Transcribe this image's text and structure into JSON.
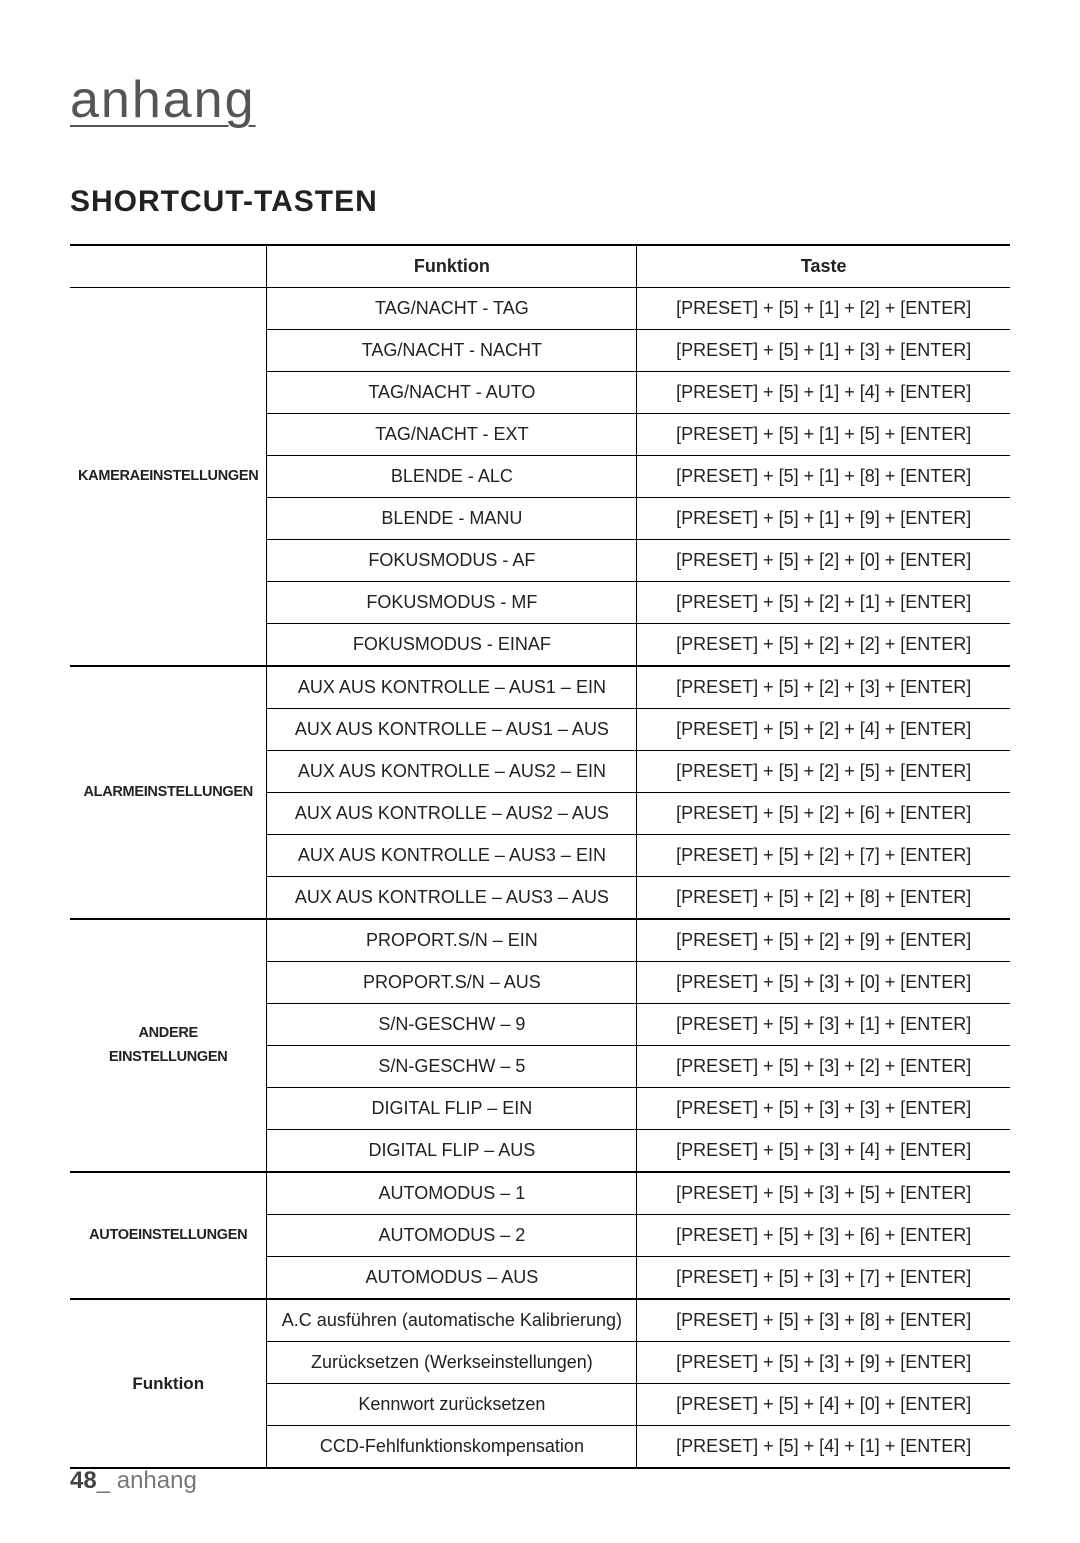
{
  "header": "anhang",
  "section_title": "SHORTCUT-TASTEN",
  "columns": {
    "cat": "",
    "func": "Funktion",
    "key": "Taste"
  },
  "groups": [
    {
      "category": "KAMERAEINSTELLUNGEN",
      "rows": [
        {
          "func": "TAG/NACHT - TAG",
          "key": "[PRESET] + [5] + [1] + [2] + [ENTER]"
        },
        {
          "func": "TAG/NACHT - NACHT",
          "key": "[PRESET] + [5] + [1] + [3] + [ENTER]"
        },
        {
          "func": "TAG/NACHT - AUTO",
          "key": "[PRESET] + [5] + [1] + [4] + [ENTER]"
        },
        {
          "func": "TAG/NACHT - EXT",
          "key": "[PRESET] + [5] + [1] + [5] + [ENTER]"
        },
        {
          "func": "BLENDE - ALC",
          "key": "[PRESET] + [5] + [1] + [8] + [ENTER]"
        },
        {
          "func": "BLENDE - MANU",
          "key": "[PRESET] + [5] + [1] + [9] + [ENTER]"
        },
        {
          "func": "FOKUSMODUS - AF",
          "key": "[PRESET] + [5] + [2] + [0] + [ENTER]"
        },
        {
          "func": "FOKUSMODUS - MF",
          "key": "[PRESET] + [5] + [2] + [1] + [ENTER]"
        },
        {
          "func": "FOKUSMODUS - EINAF",
          "key": "[PRESET] + [5] + [2] + [2] + [ENTER]"
        }
      ]
    },
    {
      "category": "ALARMEINSTELLUNGEN",
      "rows": [
        {
          "func": "AUX AUS KONTROLLE – AUS1 – EIN",
          "key": "[PRESET] + [5] + [2] + [3] + [ENTER]"
        },
        {
          "func": "AUX AUS KONTROLLE – AUS1 – AUS",
          "key": "[PRESET] + [5] + [2] + [4] + [ENTER]"
        },
        {
          "func": "AUX AUS KONTROLLE – AUS2 – EIN",
          "key": "[PRESET] + [5] + [2] + [5] + [ENTER]"
        },
        {
          "func": "AUX AUS KONTROLLE – AUS2 – AUS",
          "key": "[PRESET] + [5] + [2] + [6] + [ENTER]"
        },
        {
          "func": "AUX AUS KONTROLLE – AUS3 – EIN",
          "key": "[PRESET] + [5] + [2] + [7] + [ENTER]"
        },
        {
          "func": "AUX AUS KONTROLLE – AUS3 – AUS",
          "key": "[PRESET] + [5] + [2] + [8] + [ENTER]"
        }
      ]
    },
    {
      "category": "ANDERE EINSTELLUNGEN",
      "two_line": true,
      "rows": [
        {
          "func": "PROPORT.S/N – EIN",
          "key": "[PRESET] + [5] + [2] + [9] + [ENTER]"
        },
        {
          "func": "PROPORT.S/N – AUS",
          "key": "[PRESET] + [5] + [3] + [0] + [ENTER]"
        },
        {
          "func": "S/N-GESCHW – 9",
          "key": "[PRESET] + [5] + [3] + [1] + [ENTER]"
        },
        {
          "func": "S/N-GESCHW – 5",
          "key": "[PRESET] + [5] + [3] + [2] + [ENTER]"
        },
        {
          "func": "DIGITAL FLIP – EIN",
          "key": "[PRESET] + [5] + [3] + [3] + [ENTER]"
        },
        {
          "func": "DIGITAL FLIP – AUS",
          "key": "[PRESET] + [5] + [3] + [4] + [ENTER]"
        }
      ]
    },
    {
      "category": "AUTOEINSTELLUNGEN",
      "rows": [
        {
          "func": "AUTOMODUS – 1",
          "key": "[PRESET] + [5] + [3] + [5] + [ENTER]"
        },
        {
          "func": "AUTOMODUS – 2",
          "key": "[PRESET] + [5] + [3] + [6] + [ENTER]"
        },
        {
          "func": "AUTOMODUS – AUS",
          "key": "[PRESET] + [5] + [3] + [7] + [ENTER]"
        }
      ]
    },
    {
      "category": "Funktion",
      "two_line": true,
      "cat_style": "font-size:17px;letter-spacing:0;",
      "rows": [
        {
          "func": "A.C ausführen (automatische Kalibrierung)",
          "key": "[PRESET] + [5] + [3] + [8] + [ENTER]"
        },
        {
          "func": "Zurücksetzen (Werkseinstellungen)",
          "key": "[PRESET] + [5] + [3] + [9] + [ENTER]"
        },
        {
          "func": "Kennwort zurücksetzen",
          "key": "[PRESET] + [5] + [4] + [0] + [ENTER]"
        },
        {
          "func": "CCD-Fehlfunktionskompensation",
          "key": "[PRESET] + [5] + [4] + [1] + [ENTER]"
        }
      ]
    }
  ],
  "footer": {
    "page": "48",
    "label": "anhang",
    "sep": "_ "
  }
}
